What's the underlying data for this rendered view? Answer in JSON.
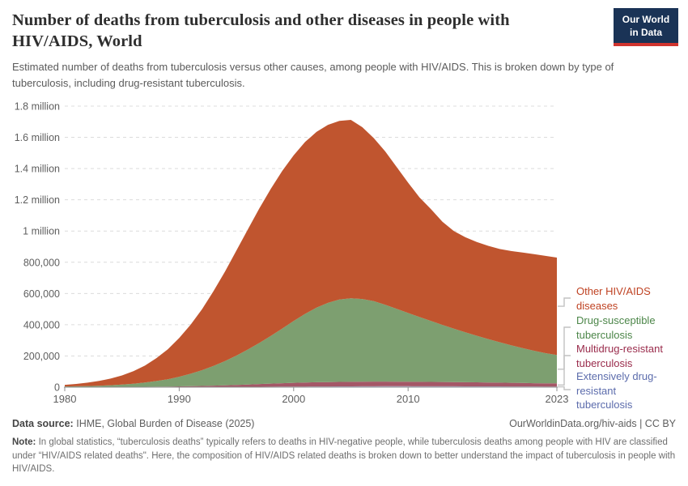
{
  "header": {
    "title": "Number of deaths from tuberculosis and other diseases in people with HIV/AIDS, World",
    "subtitle": "Estimated number of deaths from tuberculosis versus other causes, among people with HIV/AIDS. This is broken down by type of tuberculosis, including drug-resistant tuberculosis.",
    "logo": {
      "line1": "Our World",
      "line2": "in Data",
      "bg_color": "#1a3356",
      "accent_color": "#d0342e"
    }
  },
  "chart_data": {
    "type": "area",
    "stacked": true,
    "grid": "horizontal-dashed",
    "legend_position": "right",
    "xlim": [
      1980,
      2023
    ],
    "ylim": [
      0,
      1800000
    ],
    "x": [
      1980,
      1981,
      1982,
      1983,
      1984,
      1985,
      1986,
      1987,
      1988,
      1989,
      1990,
      1991,
      1992,
      1993,
      1994,
      1995,
      1996,
      1997,
      1998,
      1999,
      2000,
      2001,
      2002,
      2003,
      2004,
      2005,
      2006,
      2007,
      2008,
      2009,
      2010,
      2011,
      2012,
      2013,
      2014,
      2015,
      2016,
      2017,
      2018,
      2019,
      2020,
      2021,
      2022,
      2023
    ],
    "series": [
      {
        "id": "xdr",
        "name": "Extensively drug-resistant tuberculosis",
        "fill": "#b3b0d0",
        "values": [
          200,
          200,
          200,
          200,
          300,
          300,
          300,
          400,
          400,
          500,
          500,
          700,
          1000,
          1200,
          1500,
          1800,
          2000,
          2500,
          3000,
          3500,
          4000,
          4200,
          4500,
          4800,
          5000,
          5200,
          5500,
          5800,
          6000,
          6000,
          6000,
          5900,
          5800,
          5600,
          5500,
          5300,
          5200,
          5100,
          5000,
          4900,
          4800,
          4600,
          4300,
          4200
        ]
      },
      {
        "id": "mdr",
        "name": "Multidrug-resistant tuberculosis",
        "fill": "#a45767",
        "values": [
          300,
          400,
          500,
          700,
          900,
          1200,
          1600,
          2100,
          2800,
          3500,
          4500,
          5500,
          7000,
          8500,
          10500,
          12500,
          15000,
          17500,
          20000,
          22000,
          24000,
          25500,
          27000,
          28000,
          28500,
          29000,
          29500,
          30000,
          30000,
          29500,
          29000,
          28500,
          28000,
          27500,
          27000,
          26500,
          26000,
          25000,
          24000,
          23000,
          22000,
          21000,
          20500,
          20000
        ]
      },
      {
        "id": "ds",
        "name": "Drug-susceptible tuberculosis",
        "fill": "#7d9f70",
        "values": [
          4000,
          5000,
          6500,
          8500,
          11000,
          15000,
          20000,
          27000,
          36000,
          47000,
          62000,
          80000,
          101000,
          126000,
          155000,
          188000,
          224000,
          263000,
          305000,
          350000,
          396000,
          440000,
          478000,
          507000,
          528000,
          535000,
          530000,
          515000,
          492000,
          466000,
          440000,
          415000,
          390000,
          366000,
          342000,
          320000,
          298000,
          278000,
          259000,
          241000,
          224000,
          208000,
          193000,
          182000
        ]
      },
      {
        "id": "other",
        "name": "Other HIV/AIDS diseases",
        "fill": "#c0552f",
        "values": [
          10500,
          15400,
          21800,
          30600,
          42800,
          58500,
          80100,
          108500,
          145800,
          192000,
          248000,
          313800,
          391000,
          479300,
          573000,
          672700,
          769000,
          862000,
          942000,
          1009500,
          1061000,
          1100300,
          1125500,
          1140200,
          1143500,
          1142800,
          1100000,
          1044200,
          982000,
          909000,
          835000,
          765600,
          716200,
          660900,
          625500,
          608200,
          600800,
          596900,
          597000,
          603100,
          611200,
          618400,
          623200,
          623800
        ]
      }
    ],
    "y_ticks": [
      {
        "value": 0,
        "label": "0"
      },
      {
        "value": 200000,
        "label": "200,000"
      },
      {
        "value": 400000,
        "label": "400,000"
      },
      {
        "value": 600000,
        "label": "600,000"
      },
      {
        "value": 800000,
        "label": "800,000"
      },
      {
        "value": 1000000,
        "label": "1 million"
      },
      {
        "value": 1200000,
        "label": "1.2 million"
      },
      {
        "value": 1400000,
        "label": "1.4 million"
      },
      {
        "value": 1600000,
        "label": "1.6 million"
      },
      {
        "value": 1800000,
        "label": "1.8 million"
      }
    ],
    "x_ticks": [
      {
        "value": 1980,
        "label": "1980"
      },
      {
        "value": 1990,
        "label": "1990"
      },
      {
        "value": 2000,
        "label": "2000"
      },
      {
        "value": 2010,
        "label": "2010"
      },
      {
        "value": 2023,
        "label": "2023"
      }
    ]
  },
  "legend": [
    {
      "label": "Other HIV/AIDS diseases",
      "color": "#bf4222"
    },
    {
      "label": "Drug-susceptible tuberculosis",
      "color": "#4c8649"
    },
    {
      "label": "Multidrug-resistant tuberculosis",
      "color": "#9a2c4c"
    },
    {
      "label": "Extensively drug-resistant tuberculosis",
      "color": "#5c6cac"
    }
  ],
  "footer": {
    "data_source_label": "Data source:",
    "data_source": "IHME, Global Burden of Disease (2025)",
    "attribution": "OurWorldinData.org/hiv-aids | CC BY",
    "note_label": "Note:",
    "note": "In global statistics, “tuberculosis deaths” typically refers to deaths in HIV-negative people, while tuberculosis deaths among people with HIV are classified under “HIV/AIDS related deaths\". Here, the composition of HIV/AIDS related deaths is broken down to better understand the impact of tuberculosis in people with HIV/AIDS."
  }
}
